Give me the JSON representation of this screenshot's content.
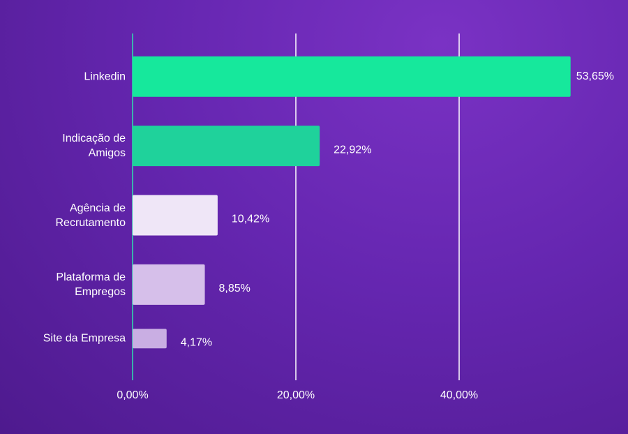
{
  "chart_data": {
    "type": "bar",
    "orientation": "horizontal",
    "categories": [
      "Linkedin",
      "Indicação de Amigos",
      "Agência de Recrutamento",
      "Plataforma de Empregos",
      "Site da Empresa"
    ],
    "values": [
      53.65,
      22.92,
      10.42,
      8.85,
      4.17
    ],
    "value_labels": [
      "53,65%",
      "22,92%",
      "10,42%",
      "8,85%",
      "4,17%"
    ],
    "colors": [
      "#16e89c",
      "#1fd29b",
      "#efe6f7",
      "#d6bfea",
      "#c9aee3"
    ],
    "xlim": [
      0,
      60
    ],
    "xticks": [
      {
        "value": 0,
        "label": "0,00%"
      },
      {
        "value": 20,
        "label": "20,00%"
      },
      {
        "value": 40,
        "label": "40,00%"
      }
    ],
    "grid": true
  }
}
